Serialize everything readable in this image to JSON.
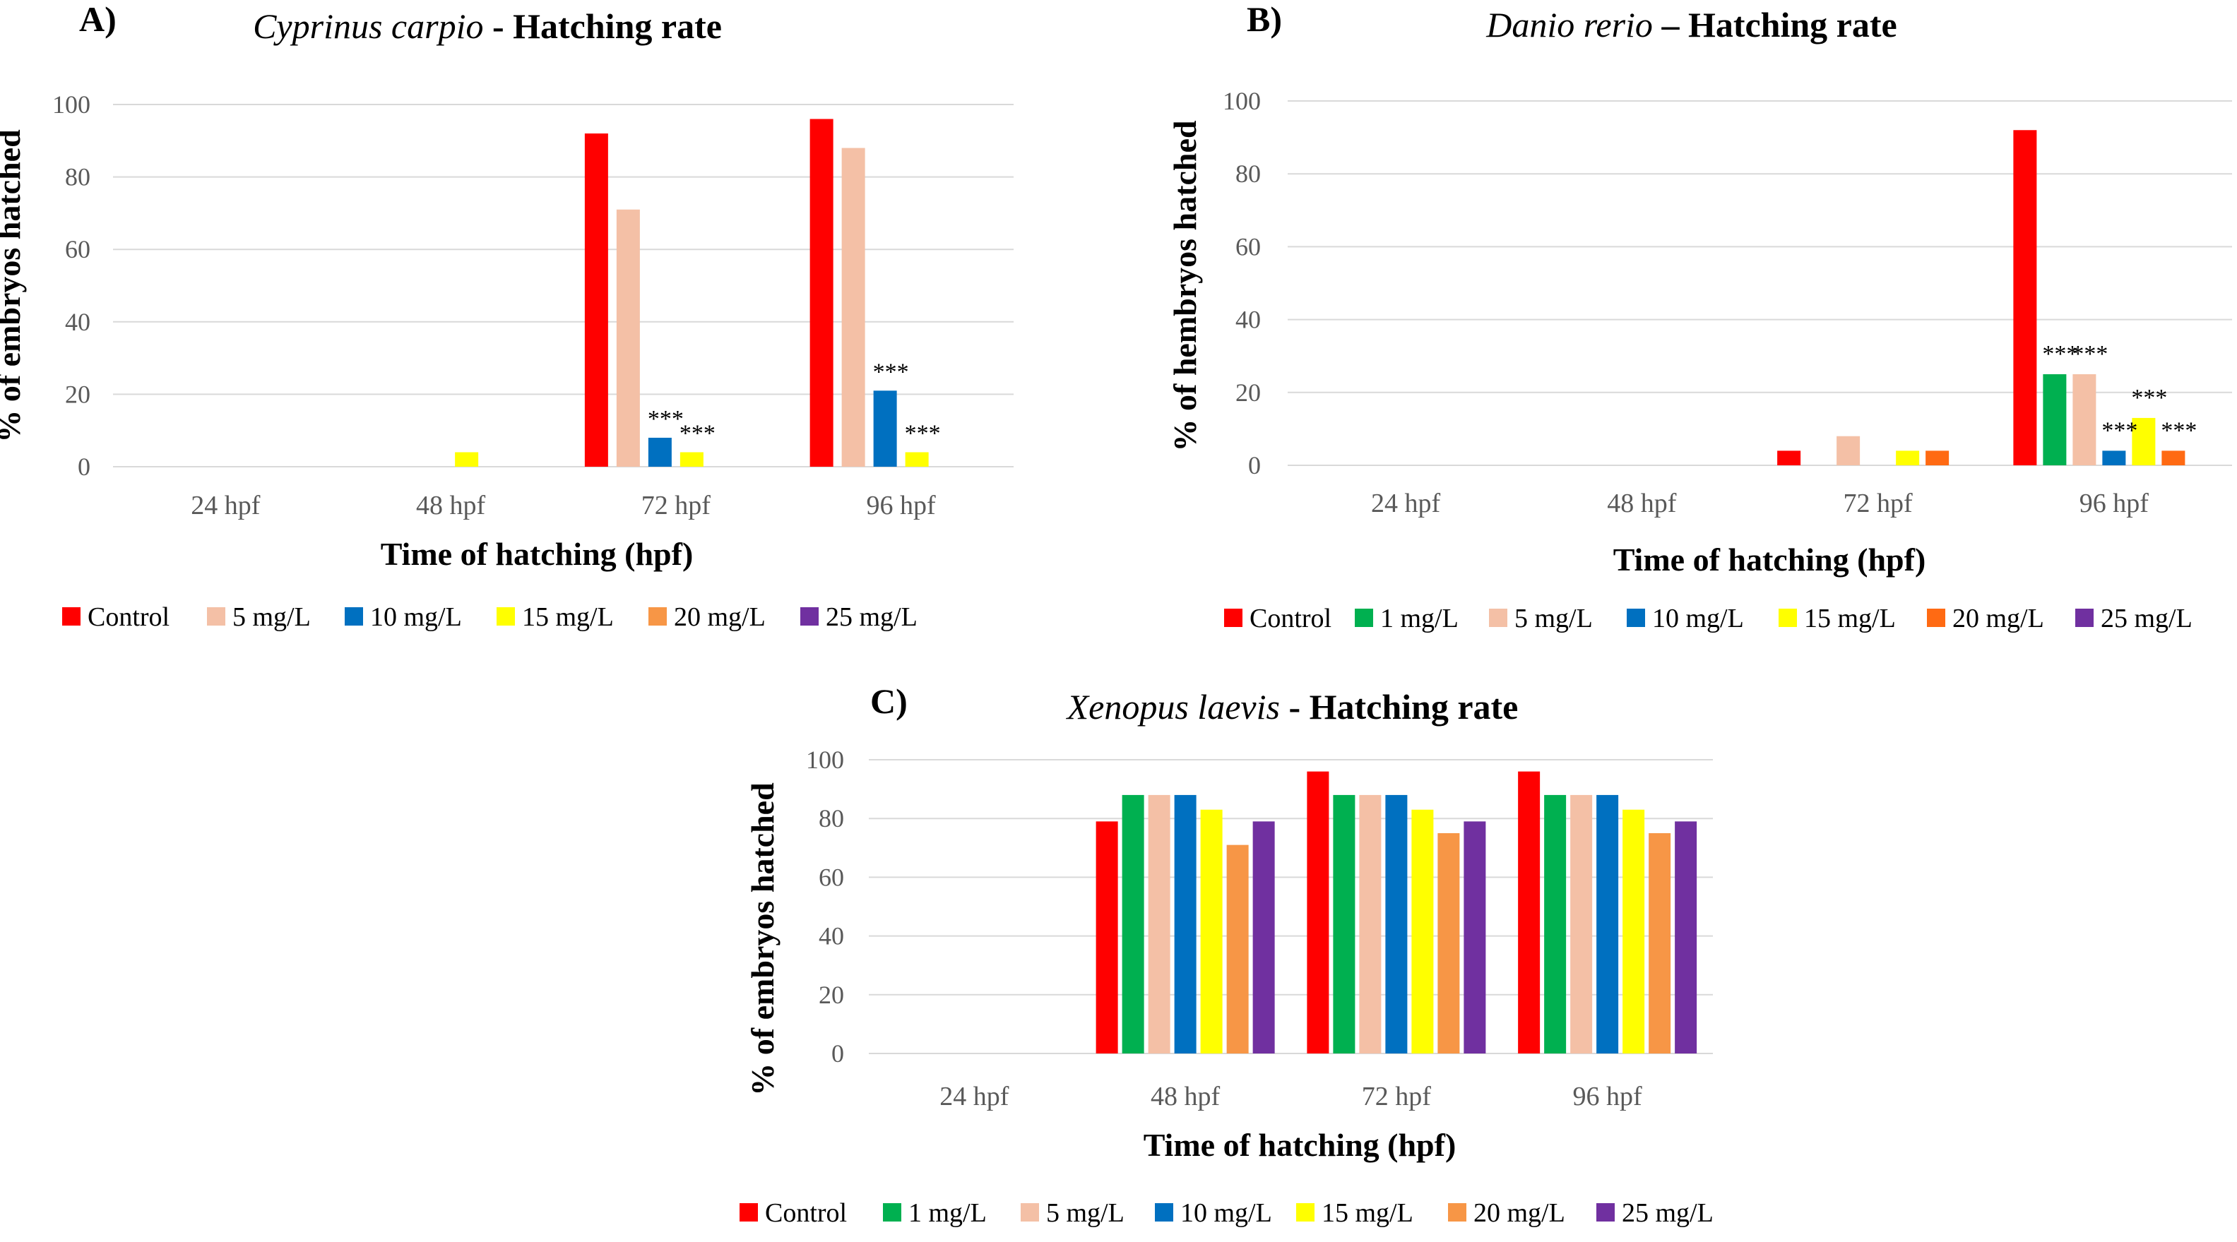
{
  "colors": {
    "Control": "#ff0000",
    "1 mg/L": "#00b050",
    "5 mg/L": "#f4c0a6",
    "10 mg/L": "#0070c0",
    "15 mg/L": "#ffff00",
    "20 mg/L": "#f79646",
    "20 mg/L_B": "#ff6a13",
    "25 mg/L": "#7030a0"
  },
  "chart_data": [
    {
      "id": "A",
      "type": "bar",
      "panel_label": "A)",
      "title_species": "Cyprinus carpio",
      "title_rest": " - Hatching rate",
      "xlabel": "Time of hatching (hpf)",
      "ylabel": "% of embryos hatched",
      "ylim": [
        0,
        100
      ],
      "yticks": [
        "0",
        "20",
        "40",
        "60",
        "80",
        "100"
      ],
      "categories": [
        "24 hpf",
        "48 hpf",
        "72 hpf",
        "96 hpf"
      ],
      "grid": true,
      "legend_position": "bottom",
      "series": [
        {
          "name": "Control",
          "values": [
            0,
            0,
            92,
            96
          ]
        },
        {
          "name": "5 mg/L",
          "values": [
            0,
            0,
            71,
            88
          ]
        },
        {
          "name": "10 mg/L",
          "values": [
            0,
            0,
            8,
            21
          ]
        },
        {
          "name": "15 mg/L",
          "values": [
            0,
            4,
            4,
            4
          ]
        },
        {
          "name": "20 mg/L",
          "values": [
            0,
            0,
            0,
            0
          ]
        },
        {
          "name": "25 mg/L",
          "values": [
            0,
            0,
            0,
            0
          ]
        }
      ],
      "annotations": [
        {
          "text": "***",
          "category": 2,
          "series": 2
        },
        {
          "text": "***",
          "category": 2,
          "series": 3
        },
        {
          "text": "***",
          "category": 3,
          "series": 2
        },
        {
          "text": "***",
          "category": 3,
          "series": 3
        }
      ]
    },
    {
      "id": "B",
      "type": "bar",
      "panel_label": "B)",
      "title_species": "Danio rerio",
      "title_rest": " – Hatching rate",
      "xlabel": "Time of hatching (hpf)",
      "ylabel": "% of hembryos hatched",
      "ylim": [
        0,
        100
      ],
      "yticks": [
        "0",
        "20",
        "40",
        "60",
        "80",
        "100"
      ],
      "categories": [
        "24 hpf",
        "48 hpf",
        "72 hpf",
        "96 hpf"
      ],
      "grid": true,
      "legend_position": "bottom",
      "series": [
        {
          "name": "Control",
          "values": [
            0,
            0,
            4,
            92
          ]
        },
        {
          "name": "1 mg/L",
          "values": [
            0,
            0,
            0,
            25
          ]
        },
        {
          "name": "5 mg/L",
          "values": [
            0,
            0,
            8,
            25
          ]
        },
        {
          "name": "10 mg/L",
          "values": [
            0,
            0,
            0,
            4
          ]
        },
        {
          "name": "15 mg/L",
          "values": [
            0,
            0,
            4,
            13
          ]
        },
        {
          "name": "20 mg/L",
          "values": [
            0,
            0,
            4,
            4
          ]
        },
        {
          "name": "25 mg/L",
          "values": [
            0,
            0,
            0,
            0
          ]
        }
      ],
      "annotations": [
        {
          "text": "***",
          "category": 3,
          "series": 1
        },
        {
          "text": "***",
          "category": 3,
          "series": 2
        },
        {
          "text": "***",
          "category": 3,
          "series": 3
        },
        {
          "text": "***",
          "category": 3,
          "series": 4
        },
        {
          "text": "***",
          "category": 3,
          "series": 5
        }
      ]
    },
    {
      "id": "C",
      "type": "bar",
      "panel_label": "C)",
      "title_species": "Xenopus laevis",
      "title_rest": " - Hatching rate",
      "xlabel": "Time of hatching (hpf)",
      "ylabel": "% of embryos hatched",
      "ylim": [
        0,
        100
      ],
      "yticks": [
        "0",
        "20",
        "40",
        "60",
        "80",
        "100"
      ],
      "categories": [
        "24 hpf",
        "48 hpf",
        "72 hpf",
        "96 hpf"
      ],
      "grid": true,
      "legend_position": "bottom",
      "series": [
        {
          "name": "Control",
          "values": [
            0,
            79,
            96,
            96
          ]
        },
        {
          "name": "1 mg/L",
          "values": [
            0,
            88,
            88,
            88
          ]
        },
        {
          "name": "5 mg/L",
          "values": [
            0,
            88,
            88,
            88
          ]
        },
        {
          "name": "10 mg/L",
          "values": [
            0,
            88,
            88,
            88
          ]
        },
        {
          "name": "15 mg/L",
          "values": [
            0,
            83,
            83,
            83
          ]
        },
        {
          "name": "20 mg/L",
          "values": [
            0,
            71,
            75,
            75
          ]
        },
        {
          "name": "25 mg/L",
          "values": [
            0,
            79,
            79,
            79
          ]
        }
      ],
      "annotations": []
    }
  ]
}
